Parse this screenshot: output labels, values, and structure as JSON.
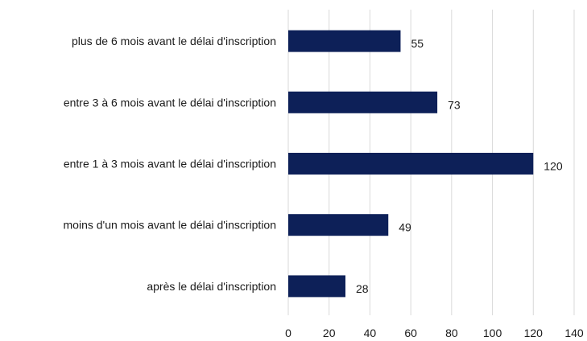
{
  "chart_data": {
    "type": "bar",
    "orientation": "horizontal",
    "categories": [
      "plus de 6 mois avant le délai d'inscription",
      "entre 3 à 6 mois avant le délai d'inscription",
      "entre 1 à 3 mois avant le délai d'inscription",
      "moins d'un mois avant le délai d'inscription",
      "après le délai d'inscription"
    ],
    "values": [
      55,
      73,
      120,
      49,
      28
    ],
    "data_labels": [
      "55",
      "73",
      "120",
      "49",
      "28"
    ],
    "xlim": [
      0,
      140
    ],
    "xticks": [
      "0",
      "20",
      "40",
      "60",
      "80",
      "100",
      "120",
      "140"
    ],
    "grid": "vertical",
    "legend": "none",
    "colors": {
      "bar": "#0d2058",
      "grid": "#d9d9d9"
    }
  }
}
